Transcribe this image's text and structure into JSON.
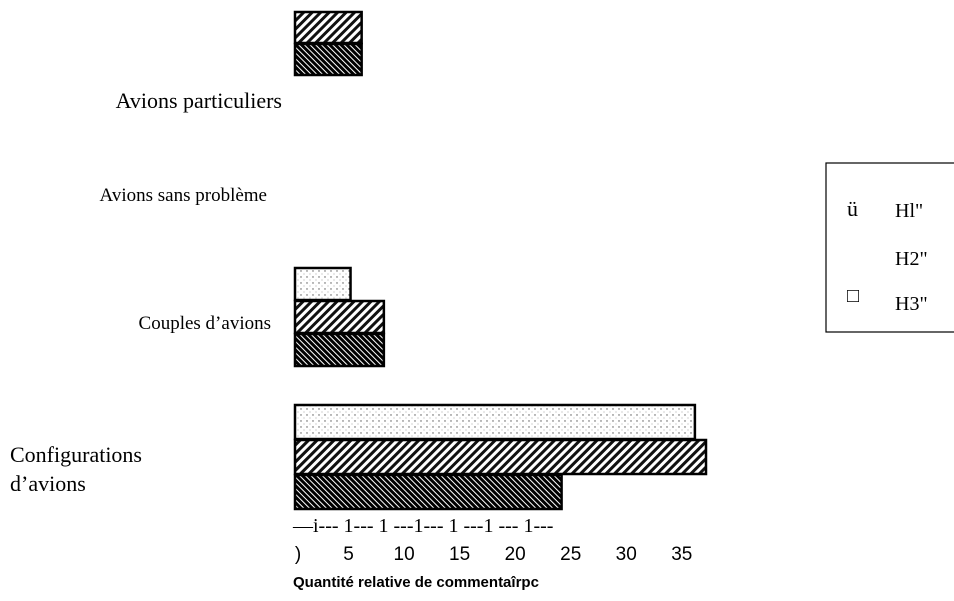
{
  "chart_data": {
    "type": "barh",
    "categories": [
      "Avions particuliers",
      "Avions sans problème",
      "Couples d’avions",
      "Configurations d’avions"
    ],
    "series": [
      {
        "name": "Hl\"",
        "color": "#000000",
        "pattern": "dots",
        "values": [
          0,
          0,
          5,
          36
        ]
      },
      {
        "name": "H2\"",
        "color": "#000000",
        "pattern": "hatch",
        "values": [
          6,
          0,
          8,
          37
        ]
      },
      {
        "name": "H3\"",
        "color": "#000000",
        "pattern": "dense",
        "values": [
          6,
          0,
          8,
          24
        ]
      }
    ],
    "legend_symbols": [
      "ü",
      "□"
    ],
    "axis_line_text": "—i--- 1--- 1 ---1--- 1 ---1 --- 1---",
    "xlim": [
      0,
      37
    ],
    "xticks": [
      {
        "value": 0,
        "label": ")"
      },
      5,
      10,
      15,
      20,
      25,
      30,
      35
    ],
    "xlabel": "Quantité relative de commentaîrpc",
    "legend": "right"
  }
}
